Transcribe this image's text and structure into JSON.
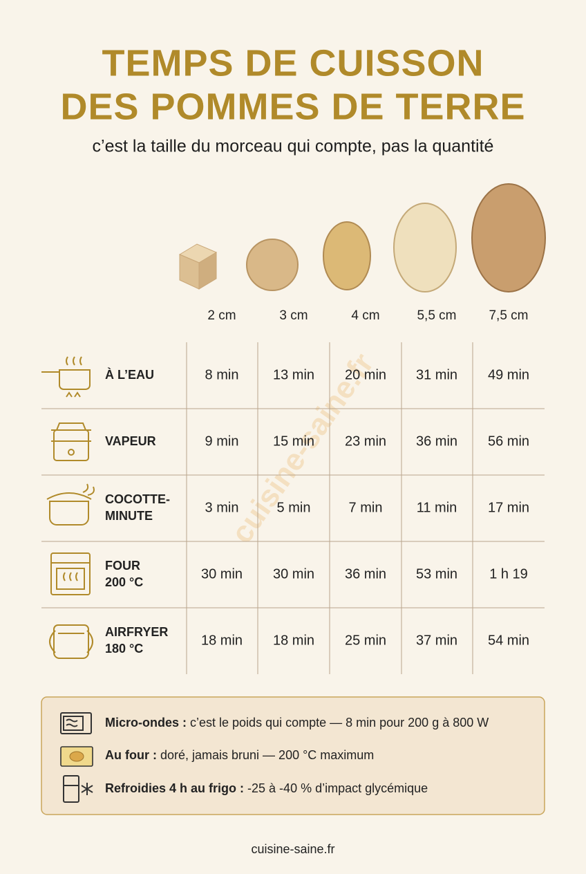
{
  "header": {
    "title_lines": [
      "TEMPS DE CUISSON",
      "DES POMMES DE TERRE"
    ],
    "subtitle": "c’est la taille du morceau qui compte, pas la quantité"
  },
  "sizes": [
    "2 cm",
    "3 cm",
    "4 cm",
    "5,5 cm",
    "7,5 cm"
  ],
  "table": {
    "rows": [
      {
        "method": [
          "À L’EAU"
        ],
        "times": [
          "8 min",
          "13 min",
          "20 min",
          "31 min",
          "49 min"
        ]
      },
      {
        "method": [
          "VAPEUR"
        ],
        "times": [
          "9 min",
          "15 min",
          "23 min",
          "36 min",
          "56 min"
        ]
      },
      {
        "method": [
          "COCOTTE-",
          "MINUTE"
        ],
        "times": [
          "3 min",
          "5 min",
          "7 min",
          "11 min",
          "17 min"
        ]
      },
      {
        "method": [
          "FOUR",
          "200 °C"
        ],
        "times": [
          "30 min",
          "30 min",
          "36 min",
          "53 min",
          "1 h 19"
        ]
      },
      {
        "method": [
          "AIRFRYER",
          "180 °C"
        ],
        "times": [
          "18 min",
          "18 min",
          "25 min",
          "37 min",
          "54 min"
        ]
      }
    ]
  },
  "notes": [
    {
      "bold": "Micro-ondes :",
      "text": "c’est le poids qui compte — 8 min pour 200 g à 800 W"
    },
    {
      "bold": "Au four :",
      "text": "doré, jamais bruni — 200 °C maximum"
    },
    {
      "bold": "Refroidies 4 h au frigo :",
      "text": "-25 à -40 % d’impact glycémique"
    }
  ],
  "watermark": "cuisine-saine.fr",
  "footer": "cuisine-saine.fr"
}
